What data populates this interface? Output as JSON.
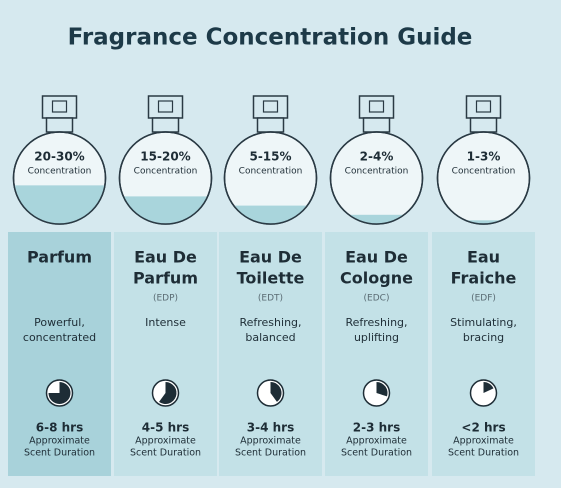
{
  "title": "Fragrance Concentration Guide",
  "columns": [
    {
      "concentration": "20-30%",
      "concentration_label": "Concentration",
      "name": [
        "Parfum"
      ],
      "description": [
        "Powerful,",
        "concentrated"
      ],
      "duration": "6-8 hrs",
      "duration_label": [
        "Approximate",
        "Scent Duration"
      ]
    },
    {
      "concentration": "15-20%",
      "concentration_label": "Concentration",
      "name": [
        "Eau De",
        "Parfum"
      ],
      "abbr": "(EDP)",
      "description": [
        "Intense"
      ],
      "duration": "4-5 hrs",
      "duration_label": [
        "Approximate",
        "Scent Duration"
      ]
    },
    {
      "concentration": "5-15%",
      "concentration_label": "Concentration",
      "name": [
        "Eau De",
        "Toilette"
      ],
      "abbr": "(EDT)",
      "description": [
        "Refreshing,",
        "balanced"
      ],
      "duration": "3-4 hrs",
      "duration_label": [
        "Approximate",
        "Scent Duration"
      ]
    },
    {
      "concentration": "2-4%",
      "concentration_label": "Concentration",
      "name": [
        "Eau De",
        "Cologne"
      ],
      "abbr": "(EDC)",
      "description": [
        "Refreshing,",
        "uplifting"
      ],
      "duration": "2-3 hrs",
      "duration_label": [
        "Approximate",
        "Scent Duration"
      ]
    },
    {
      "concentration": "1-3%",
      "concentration_label": "Concentration",
      "name": [
        "Eau",
        "Fraiche"
      ],
      "abbr": "(EDF)",
      "description": [
        "Stimulating,",
        "bracing"
      ],
      "duration": "<2 hrs",
      "duration_label": [
        "Approximate",
        "Scent Duration"
      ]
    }
  ]
}
